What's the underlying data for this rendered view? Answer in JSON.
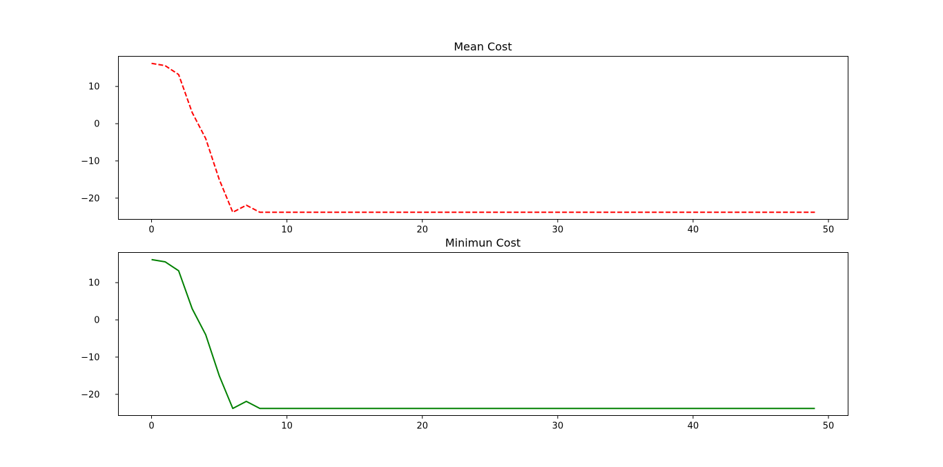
{
  "chart_data": [
    {
      "type": "line",
      "title": "Mean Cost",
      "xlabel": "",
      "ylabel": "",
      "xlim": [
        -2.45,
        51.45
      ],
      "ylim": [
        -25.7,
        18.1
      ],
      "xticks": [
        0,
        10,
        20,
        30,
        40,
        50
      ],
      "yticks": [
        -20,
        -10,
        0,
        10
      ],
      "tick_labels_x": [
        "0",
        "10",
        "20",
        "30",
        "40",
        "50"
      ],
      "tick_labels_y": [
        "−20",
        "−10",
        "0",
        "10"
      ],
      "grid": false,
      "series": [
        {
          "line_style": "dashed",
          "color": "#ff0000",
          "x": [
            0,
            1,
            2,
            3,
            4,
            5,
            6,
            7,
            8,
            9,
            10,
            11,
            12,
            13,
            14,
            15,
            16,
            17,
            18,
            19,
            20,
            21,
            22,
            23,
            24,
            25,
            26,
            27,
            28,
            29,
            30,
            31,
            32,
            33,
            34,
            35,
            36,
            37,
            38,
            39,
            40,
            41,
            42,
            43,
            44,
            45,
            46,
            47,
            48,
            49
          ],
          "values": [
            16.2,
            15.6,
            13.2,
            3.0,
            -4.0,
            -15.0,
            -23.8,
            -21.9,
            -23.8,
            -23.8,
            -23.8,
            -23.8,
            -23.8,
            -23.8,
            -23.8,
            -23.8,
            -23.8,
            -23.8,
            -23.8,
            -23.8,
            -23.8,
            -23.8,
            -23.8,
            -23.8,
            -23.8,
            -23.8,
            -23.8,
            -23.8,
            -23.8,
            -23.8,
            -23.8,
            -23.8,
            -23.8,
            -23.8,
            -23.8,
            -23.8,
            -23.8,
            -23.8,
            -23.8,
            -23.8,
            -23.8,
            -23.8,
            -23.8,
            -23.8,
            -23.8,
            -23.8,
            -23.8,
            -23.8,
            -23.8,
            -23.8
          ]
        }
      ]
    },
    {
      "type": "line",
      "title": "Minimun Cost",
      "xlabel": "",
      "ylabel": "",
      "xlim": [
        -2.45,
        51.45
      ],
      "ylim": [
        -25.7,
        18.1
      ],
      "xticks": [
        0,
        10,
        20,
        30,
        40,
        50
      ],
      "yticks": [
        -20,
        -10,
        0,
        10
      ],
      "tick_labels_x": [
        "0",
        "10",
        "20",
        "30",
        "40",
        "50"
      ],
      "tick_labels_y": [
        "−20",
        "−10",
        "0",
        "10"
      ],
      "grid": false,
      "series": [
        {
          "line_style": "solid",
          "color": "#008000",
          "x": [
            0,
            1,
            2,
            3,
            4,
            5,
            6,
            7,
            8,
            9,
            10,
            11,
            12,
            13,
            14,
            15,
            16,
            17,
            18,
            19,
            20,
            21,
            22,
            23,
            24,
            25,
            26,
            27,
            28,
            29,
            30,
            31,
            32,
            33,
            34,
            35,
            36,
            37,
            38,
            39,
            40,
            41,
            42,
            43,
            44,
            45,
            46,
            47,
            48,
            49
          ],
          "values": [
            16.2,
            15.6,
            13.2,
            3.0,
            -4.0,
            -15.0,
            -23.8,
            -21.9,
            -23.8,
            -23.8,
            -23.8,
            -23.8,
            -23.8,
            -23.8,
            -23.8,
            -23.8,
            -23.8,
            -23.8,
            -23.8,
            -23.8,
            -23.8,
            -23.8,
            -23.8,
            -23.8,
            -23.8,
            -23.8,
            -23.8,
            -23.8,
            -23.8,
            -23.8,
            -23.8,
            -23.8,
            -23.8,
            -23.8,
            -23.8,
            -23.8,
            -23.8,
            -23.8,
            -23.8,
            -23.8,
            -23.8,
            -23.8,
            -23.8,
            -23.8,
            -23.8,
            -23.8,
            -23.8,
            -23.8,
            -23.8,
            -23.8
          ]
        }
      ]
    }
  ]
}
